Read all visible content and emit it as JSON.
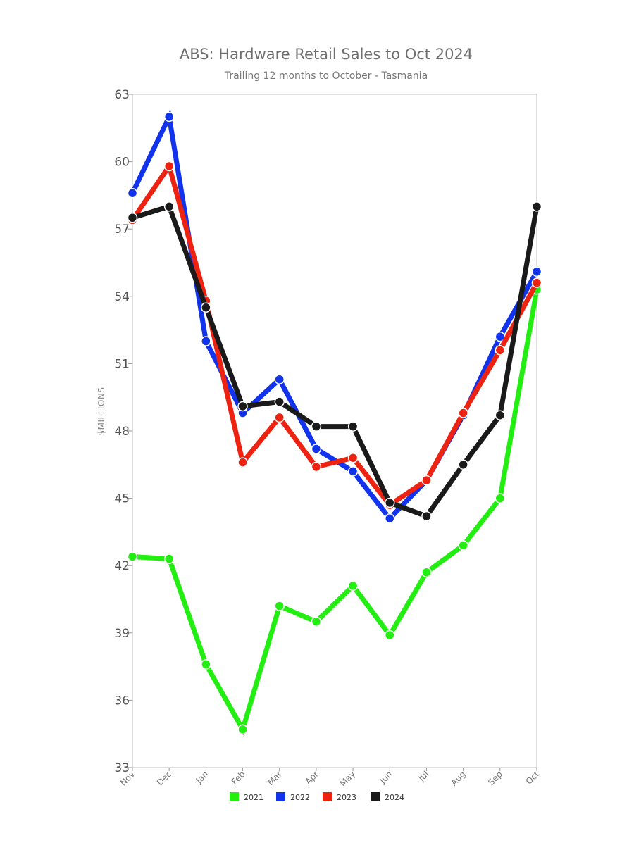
{
  "chart_data": {
    "type": "line",
    "title": "ABS: Hardware Retail Sales to Oct 2024",
    "subtitle": "Trailing 12 months to October - Tasmania",
    "xlabel": "",
    "ylabel": "$MILLIONS",
    "ylim": [
      33,
      63
    ],
    "yticks": [
      33,
      36,
      39,
      42,
      45,
      48,
      51,
      54,
      57,
      60,
      63
    ],
    "categories": [
      "Nov",
      "Dec",
      "Jan",
      "Feb",
      "Mar",
      "Apr",
      "May",
      "Jun",
      "Jul",
      "Aug",
      "Sep",
      "Oct"
    ],
    "legend_position": "bottom",
    "series": [
      {
        "name": "2021",
        "color": "#22ee11",
        "values": [
          42.4,
          42.3,
          37.6,
          34.7,
          40.2,
          39.5,
          41.1,
          38.9,
          41.7,
          42.9,
          45.0,
          54.3
        ]
      },
      {
        "name": "2022",
        "color": "#1133ee",
        "values": [
          58.6,
          62.0,
          52.0,
          48.8,
          50.3,
          47.2,
          46.2,
          44.1,
          45.8,
          48.7,
          52.2,
          55.1
        ]
      },
      {
        "name": "2023",
        "color": "#ee2211",
        "values": [
          57.4,
          59.8,
          53.8,
          46.6,
          48.6,
          46.4,
          46.8,
          44.7,
          45.8,
          48.8,
          51.6,
          54.6
        ]
      },
      {
        "name": "2024",
        "color": "#1a1a1a",
        "values": [
          57.5,
          58.0,
          53.5,
          49.1,
          49.3,
          48.2,
          48.2,
          44.8,
          44.2,
          46.5,
          48.7,
          58.0
        ]
      }
    ]
  }
}
